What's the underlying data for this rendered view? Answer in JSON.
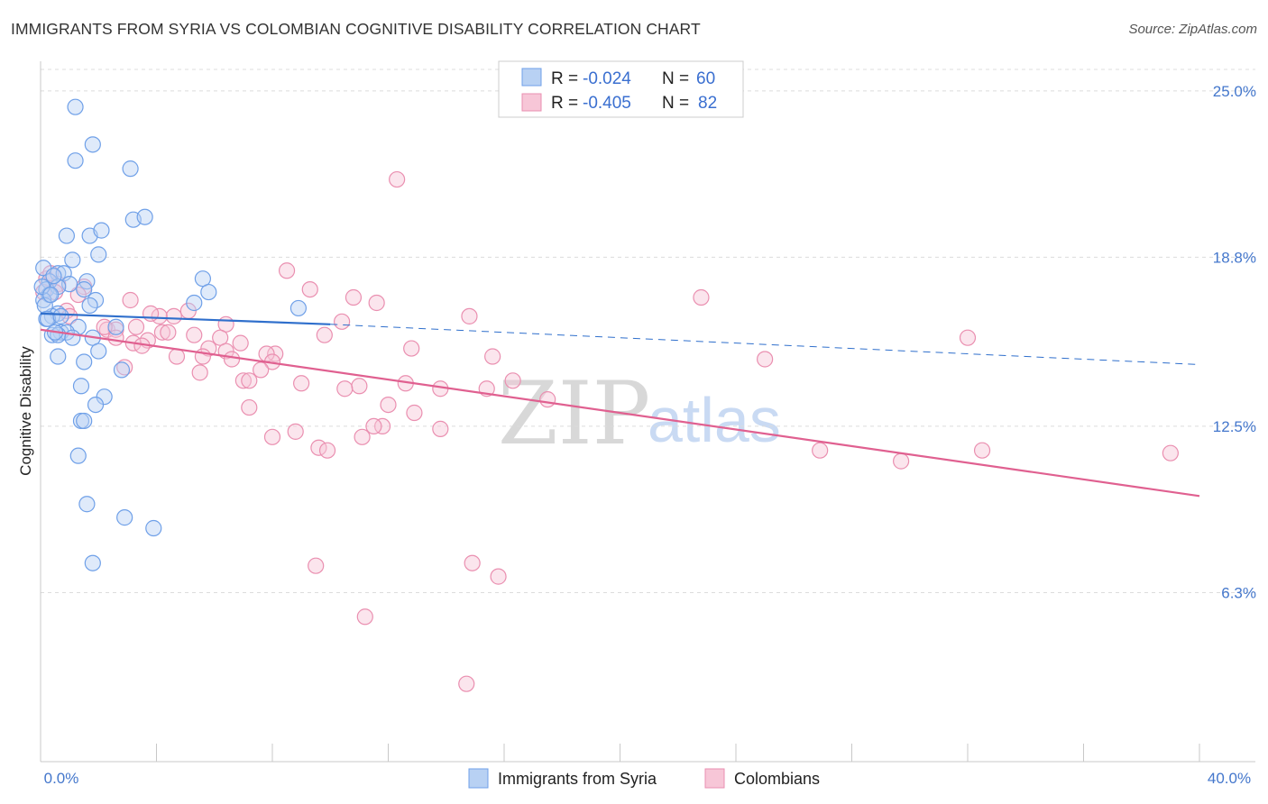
{
  "title": "IMMIGRANTS FROM SYRIA VS COLOMBIAN COGNITIVE DISABILITY CORRELATION CHART",
  "source": "Source: ZipAtlas.com",
  "watermark": {
    "zip": "ZIP",
    "atlas": "atlas"
  },
  "colors": {
    "syria": "#6fa0e8",
    "syria_fill": "#b8d1f3",
    "syria_line": "#2f6fcc",
    "colombia": "#ea8fb0",
    "colombia_fill": "#f7c6d7",
    "colombia_line": "#e06090",
    "grid": "#dcdcdc",
    "axis_text": "#4477cc"
  },
  "legend": {
    "syria": {
      "r_label": "R = ",
      "r_value": "-0.024",
      "n_label": "N = ",
      "n_value": "60"
    },
    "colombia": {
      "r_label": "R = ",
      "r_value": "-0.405",
      "n_label": "N = ",
      "n_value": "82"
    }
  },
  "chart_data": {
    "type": "scatter",
    "xlabel": "",
    "ylabel": "Cognitive Disability",
    "xlim": [
      0,
      40
    ],
    "ylim": [
      0,
      25.8
    ],
    "x_tick_labels": [
      "0.0%",
      "40.0%"
    ],
    "y_ticks": [
      6.3,
      12.5,
      18.8,
      25.0
    ],
    "y_tick_labels": [
      "6.3%",
      "12.5%",
      "18.8%",
      "25.0%"
    ],
    "x_minor_ticks": [
      0,
      4,
      8,
      12,
      16,
      20,
      24,
      28,
      32,
      36,
      40
    ],
    "grid": true,
    "series": [
      {
        "name": "Immigrants from Syria",
        "r": -0.024,
        "n": 60,
        "trend": {
          "x0": 0,
          "y0": 16.7,
          "x1": 10,
          "y1": 16.3,
          "dash_x1": 40,
          "dash_y1": 14.8
        },
        "points": [
          [
            1.2,
            24.4
          ],
          [
            1.8,
            23.0
          ],
          [
            1.2,
            22.4
          ],
          [
            3.1,
            22.1
          ],
          [
            3.2,
            20.2
          ],
          [
            3.6,
            20.3
          ],
          [
            0.9,
            19.6
          ],
          [
            1.7,
            19.6
          ],
          [
            2.1,
            19.8
          ],
          [
            2.0,
            18.9
          ],
          [
            1.1,
            18.7
          ],
          [
            0.1,
            18.4
          ],
          [
            0.6,
            18.2
          ],
          [
            0.8,
            18.2
          ],
          [
            0.3,
            17.9
          ],
          [
            1.6,
            17.9
          ],
          [
            5.6,
            18.0
          ],
          [
            1.0,
            17.8
          ],
          [
            0.2,
            17.6
          ],
          [
            0.6,
            17.7
          ],
          [
            1.5,
            17.6
          ],
          [
            0.3,
            17.4
          ],
          [
            5.8,
            17.5
          ],
          [
            0.1,
            17.2
          ],
          [
            1.9,
            17.2
          ],
          [
            5.3,
            17.1
          ],
          [
            1.7,
            17.0
          ],
          [
            8.9,
            16.9
          ],
          [
            0.6,
            16.7
          ],
          [
            0.4,
            16.6
          ],
          [
            0.2,
            16.5
          ],
          [
            2.6,
            16.2
          ],
          [
            1.3,
            16.2
          ],
          [
            0.7,
            16.0
          ],
          [
            0.4,
            15.9
          ],
          [
            0.9,
            16.0
          ],
          [
            0.6,
            15.9
          ],
          [
            1.1,
            15.8
          ],
          [
            1.8,
            15.8
          ],
          [
            2.0,
            15.3
          ],
          [
            0.6,
            15.1
          ],
          [
            1.5,
            14.9
          ],
          [
            2.8,
            14.6
          ],
          [
            1.4,
            14.0
          ],
          [
            2.2,
            13.6
          ],
          [
            1.9,
            13.3
          ],
          [
            1.4,
            12.7
          ],
          [
            1.5,
            12.7
          ],
          [
            1.3,
            11.4
          ],
          [
            1.6,
            9.6
          ],
          [
            2.9,
            9.1
          ],
          [
            3.9,
            8.7
          ],
          [
            1.8,
            7.4
          ],
          [
            0.05,
            17.7
          ],
          [
            0.15,
            17.0
          ],
          [
            0.25,
            16.5
          ],
          [
            0.5,
            16.0
          ],
          [
            0.35,
            17.4
          ],
          [
            0.45,
            18.1
          ],
          [
            0.7,
            16.6
          ]
        ]
      },
      {
        "name": "Colombians",
        "r": -0.405,
        "n": 82,
        "trend": {
          "x0": 0,
          "y0": 16.1,
          "x1": 40,
          "y1": 9.9
        },
        "points": [
          [
            12.3,
            21.7
          ],
          [
            8.5,
            18.3
          ],
          [
            0.2,
            18.0
          ],
          [
            0.6,
            17.8
          ],
          [
            1.5,
            17.7
          ],
          [
            0.5,
            17.5
          ],
          [
            9.3,
            17.6
          ],
          [
            3.1,
            17.2
          ],
          [
            10.8,
            17.3
          ],
          [
            11.6,
            17.1
          ],
          [
            22.8,
            17.3
          ],
          [
            0.9,
            16.8
          ],
          [
            5.1,
            16.8
          ],
          [
            4.6,
            16.6
          ],
          [
            14.8,
            16.6
          ],
          [
            4.1,
            16.6
          ],
          [
            10.4,
            16.4
          ],
          [
            6.4,
            16.3
          ],
          [
            3.3,
            16.2
          ],
          [
            2.3,
            16.1
          ],
          [
            2.6,
            16.1
          ],
          [
            4.2,
            16.0
          ],
          [
            4.4,
            16.0
          ],
          [
            5.3,
            15.9
          ],
          [
            6.2,
            15.8
          ],
          [
            9.8,
            15.9
          ],
          [
            32.0,
            15.8
          ],
          [
            2.6,
            15.8
          ],
          [
            3.7,
            15.7
          ],
          [
            3.2,
            15.6
          ],
          [
            3.5,
            15.5
          ],
          [
            5.8,
            15.4
          ],
          [
            6.4,
            15.3
          ],
          [
            12.8,
            15.4
          ],
          [
            15.6,
            15.1
          ],
          [
            4.7,
            15.1
          ],
          [
            5.6,
            15.1
          ],
          [
            8.1,
            15.2
          ],
          [
            7.8,
            15.2
          ],
          [
            6.6,
            15.0
          ],
          [
            25.0,
            15.0
          ],
          [
            8.0,
            14.9
          ],
          [
            7.6,
            14.6
          ],
          [
            2.9,
            14.7
          ],
          [
            5.5,
            14.5
          ],
          [
            7.0,
            14.2
          ],
          [
            7.2,
            14.2
          ],
          [
            16.3,
            14.2
          ],
          [
            9.0,
            14.1
          ],
          [
            12.6,
            14.1
          ],
          [
            11.0,
            14.0
          ],
          [
            10.5,
            13.9
          ],
          [
            15.4,
            13.9
          ],
          [
            13.8,
            13.9
          ],
          [
            17.5,
            13.5
          ],
          [
            12.0,
            13.3
          ],
          [
            7.2,
            13.2
          ],
          [
            12.9,
            13.0
          ],
          [
            11.8,
            12.5
          ],
          [
            13.8,
            12.4
          ],
          [
            8.8,
            12.3
          ],
          [
            11.1,
            12.1
          ],
          [
            8.0,
            12.1
          ],
          [
            11.5,
            12.5
          ],
          [
            9.6,
            11.7
          ],
          [
            9.9,
            11.6
          ],
          [
            26.9,
            11.6
          ],
          [
            32.5,
            11.6
          ],
          [
            29.7,
            11.2
          ],
          [
            39.0,
            11.5
          ],
          [
            14.9,
            7.4
          ],
          [
            9.5,
            7.3
          ],
          [
            15.8,
            6.9
          ],
          [
            11.2,
            5.4
          ],
          [
            14.7,
            2.9
          ],
          [
            0.1,
            17.5
          ],
          [
            0.35,
            18.2
          ],
          [
            1.0,
            16.6
          ],
          [
            1.3,
            17.4
          ],
          [
            2.2,
            16.2
          ],
          [
            6.9,
            15.6
          ],
          [
            3.8,
            16.7
          ]
        ]
      }
    ]
  }
}
